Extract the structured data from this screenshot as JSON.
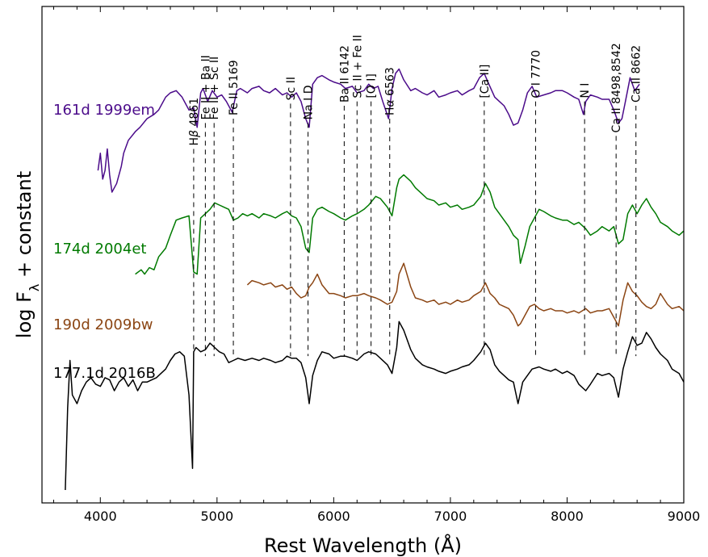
{
  "chart_data": {
    "type": "line",
    "xlabel": "Rest Wavelength (Å)",
    "ylabel": "log F_λ + constant",
    "ylabel_main": "log F",
    "ylabel_sub": "λ",
    "ylabel_rest": " + constant",
    "xlim": [
      3500,
      9000
    ],
    "xticks": [
      4000,
      5000,
      6000,
      7000,
      8000,
      9000
    ],
    "grid": false,
    "series": [
      {
        "name": "161d 1999em",
        "color": "#4b0b8a",
        "x": [
          3980,
          4000,
          4020,
          4040,
          4060,
          4080,
          4100,
          4140,
          4180,
          4200,
          4240,
          4300,
          4340,
          4400,
          4460,
          4500,
          4560,
          4600,
          4650,
          4700,
          4760,
          4800,
          4830,
          4860,
          4880,
          4920,
          4960,
          5000,
          5040,
          5080,
          5130,
          5170,
          5200,
          5260,
          5300,
          5360,
          5400,
          5450,
          5500,
          5560,
          5600,
          5640,
          5680,
          5720,
          5760,
          5790,
          5820,
          5860,
          5900,
          5960,
          6000,
          6060,
          6100,
          6160,
          6200,
          6260,
          6300,
          6340,
          6380,
          6420,
          6470,
          6500,
          6530,
          6560,
          6600,
          6660,
          6700,
          6760,
          6800,
          6860,
          6900,
          6960,
          7000,
          7060,
          7100,
          7160,
          7200,
          7250,
          7290,
          7330,
          7380,
          7420,
          7460,
          7500,
          7540,
          7580,
          7620,
          7660,
          7700,
          7740,
          7800,
          7860,
          7900,
          7960,
          8000,
          8060,
          8100,
          8140,
          8160,
          8200,
          8260,
          8300,
          8360,
          8400,
          8440,
          8470,
          8500,
          8540,
          8580,
          8620
        ],
        "y": [
          7.7,
          8.1,
          7.5,
          7.7,
          8.2,
          7.6,
          7.2,
          7.4,
          7.8,
          8.1,
          8.4,
          8.6,
          8.7,
          8.9,
          9.0,
          9.1,
          9.4,
          9.5,
          9.55,
          9.4,
          9.1,
          9.15,
          8.7,
          9.5,
          9.6,
          9.3,
          9.55,
          9.4,
          9.45,
          9.3,
          9.05,
          9.55,
          9.6,
          9.5,
          9.6,
          9.65,
          9.55,
          9.5,
          9.6,
          9.45,
          9.5,
          9.4,
          9.5,
          9.3,
          8.9,
          8.7,
          9.7,
          9.85,
          9.9,
          9.8,
          9.75,
          9.7,
          9.6,
          9.65,
          9.5,
          9.55,
          9.7,
          9.6,
          9.65,
          9.3,
          8.9,
          9.6,
          9.95,
          10.05,
          9.8,
          9.55,
          9.6,
          9.5,
          9.45,
          9.55,
          9.4,
          9.45,
          9.5,
          9.55,
          9.45,
          9.55,
          9.6,
          9.85,
          9.95,
          9.7,
          9.4,
          9.3,
          9.2,
          9.0,
          8.75,
          8.8,
          9.1,
          9.5,
          9.65,
          9.4,
          9.45,
          9.5,
          9.55,
          9.55,
          9.5,
          9.4,
          9.35,
          9.0,
          9.3,
          9.45,
          9.4,
          9.35,
          9.35,
          9.1,
          8.8,
          8.9,
          9.3,
          9.85,
          9.55,
          9.7
        ]
      },
      {
        "name": "174d 2004et",
        "color": "#007a00",
        "x": [
          4300,
          4350,
          4380,
          4420,
          4460,
          4500,
          4560,
          4600,
          4650,
          4700,
          4760,
          4800,
          4830,
          4860,
          4900,
          4940,
          4980,
          5020,
          5060,
          5100,
          5140,
          5180,
          5220,
          5260,
          5300,
          5360,
          5400,
          5460,
          5500,
          5560,
          5600,
          5640,
          5680,
          5720,
          5760,
          5790,
          5820,
          5860,
          5900,
          5960,
          6000,
          6060,
          6100,
          6160,
          6200,
          6260,
          6300,
          6360,
          6400,
          6460,
          6500,
          6540,
          6560,
          6600,
          6660,
          6700,
          6760,
          6800,
          6860,
          6900,
          6960,
          7000,
          7060,
          7100,
          7160,
          7200,
          7260,
          7300,
          7340,
          7380,
          7420,
          7460,
          7500,
          7540,
          7580,
          7600,
          7640,
          7680,
          7720,
          7760,
          7800,
          7860,
          7900,
          7960,
          8000,
          8060,
          8100,
          8160,
          8200,
          8260,
          8300,
          8360,
          8400,
          8440,
          8480,
          8520,
          8560,
          8600,
          8640,
          8680,
          8720,
          8760,
          8800,
          8860,
          8900,
          8960,
          9000
        ],
        "y": [
          5.3,
          5.4,
          5.3,
          5.45,
          5.4,
          5.7,
          5.9,
          6.2,
          6.55,
          6.6,
          6.65,
          5.35,
          5.3,
          6.6,
          6.7,
          6.8,
          6.95,
          6.9,
          6.85,
          6.8,
          6.55,
          6.6,
          6.7,
          6.65,
          6.7,
          6.6,
          6.7,
          6.65,
          6.6,
          6.7,
          6.75,
          6.65,
          6.6,
          6.4,
          5.9,
          5.8,
          6.6,
          6.8,
          6.85,
          6.75,
          6.7,
          6.6,
          6.55,
          6.65,
          6.7,
          6.8,
          6.9,
          7.1,
          7.05,
          6.85,
          6.65,
          7.3,
          7.5,
          7.6,
          7.45,
          7.3,
          7.15,
          7.05,
          7.0,
          6.9,
          6.95,
          6.85,
          6.9,
          6.8,
          6.85,
          6.9,
          7.1,
          7.4,
          7.2,
          6.85,
          6.7,
          6.55,
          6.4,
          6.2,
          6.1,
          5.55,
          5.95,
          6.4,
          6.6,
          6.8,
          6.75,
          6.65,
          6.6,
          6.55,
          6.55,
          6.45,
          6.5,
          6.35,
          6.2,
          6.3,
          6.4,
          6.3,
          6.4,
          6.0,
          6.1,
          6.7,
          6.9,
          6.7,
          6.9,
          7.05,
          6.85,
          6.7,
          6.5,
          6.4,
          6.3,
          6.2,
          6.3
        ]
      },
      {
        "name": "190d 2009bw",
        "color": "#8b4513",
        "x": [
          5260,
          5300,
          5360,
          5400,
          5460,
          5500,
          5560,
          5600,
          5640,
          5680,
          5720,
          5760,
          5790,
          5820,
          5860,
          5900,
          5960,
          6000,
          6060,
          6100,
          6160,
          6200,
          6260,
          6300,
          6360,
          6400,
          6460,
          6500,
          6540,
          6560,
          6600,
          6660,
          6700,
          6760,
          6800,
          6860,
          6900,
          6960,
          7000,
          7060,
          7100,
          7160,
          7200,
          7260,
          7300,
          7340,
          7380,
          7420,
          7460,
          7500,
          7540,
          7580,
          7600,
          7640,
          7680,
          7720,
          7760,
          7800,
          7860,
          7900,
          7960,
          8000,
          8060,
          8100,
          8160,
          8200,
          8260,
          8300,
          8360,
          8400,
          8440,
          8480,
          8520,
          8560,
          8600,
          8640,
          8680,
          8720,
          8760,
          8800,
          8860,
          8900,
          8960,
          9000
        ],
        "y": [
          5.05,
          5.15,
          5.1,
          5.05,
          5.1,
          5.0,
          5.05,
          4.95,
          5.0,
          4.85,
          4.75,
          4.8,
          5.0,
          5.1,
          5.3,
          5.05,
          4.85,
          4.85,
          4.8,
          4.75,
          4.8,
          4.8,
          4.85,
          4.8,
          4.75,
          4.7,
          4.6,
          4.65,
          4.9,
          5.3,
          5.55,
          5.0,
          4.75,
          4.7,
          4.65,
          4.7,
          4.6,
          4.65,
          4.6,
          4.7,
          4.65,
          4.7,
          4.8,
          4.9,
          5.1,
          4.85,
          4.75,
          4.6,
          4.55,
          4.5,
          4.35,
          4.1,
          4.15,
          4.35,
          4.55,
          4.6,
          4.5,
          4.45,
          4.5,
          4.45,
          4.45,
          4.4,
          4.45,
          4.4,
          4.5,
          4.4,
          4.45,
          4.45,
          4.5,
          4.3,
          4.1,
          4.7,
          5.1,
          4.9,
          4.8,
          4.65,
          4.55,
          4.5,
          4.6,
          4.85,
          4.6,
          4.5,
          4.55,
          4.45
        ]
      },
      {
        "name": "177.1d 2016B",
        "color": "#000000",
        "x": [
          3700,
          3720,
          3740,
          3760,
          3800,
          3840,
          3880,
          3920,
          3960,
          4000,
          4040,
          4080,
          4120,
          4160,
          4200,
          4240,
          4280,
          4320,
          4360,
          4400,
          4440,
          4480,
          4520,
          4560,
          4600,
          4640,
          4680,
          4720,
          4760,
          4790,
          4800,
          4820,
          4860,
          4900,
          4940,
          4980,
          5020,
          5060,
          5100,
          5140,
          5180,
          5240,
          5300,
          5360,
          5400,
          5460,
          5500,
          5560,
          5600,
          5640,
          5680,
          5720,
          5760,
          5790,
          5820,
          5860,
          5900,
          5960,
          6000,
          6060,
          6100,
          6160,
          6200,
          6260,
          6300,
          6360,
          6400,
          6460,
          6500,
          6540,
          6560,
          6600,
          6660,
          6700,
          6760,
          6800,
          6860,
          6900,
          6960,
          7000,
          7060,
          7100,
          7160,
          7200,
          7260,
          7300,
          7340,
          7380,
          7420,
          7460,
          7500,
          7540,
          7580,
          7620,
          7660,
          7700,
          7760,
          7800,
          7860,
          7900,
          7960,
          8000,
          8060,
          8100,
          8160,
          8200,
          8260,
          8300,
          8360,
          8400,
          8440,
          8480,
          8520,
          8560,
          8600,
          8640,
          8680,
          8720,
          8760,
          8800,
          8860,
          8900,
          8960,
          9000
        ],
        "y": [
          0.3,
          2.2,
          3.3,
          2.5,
          2.3,
          2.6,
          2.8,
          2.9,
          2.75,
          2.7,
          2.9,
          2.85,
          2.6,
          2.8,
          2.9,
          2.7,
          2.85,
          2.6,
          2.8,
          2.8,
          2.85,
          2.9,
          3.0,
          3.1,
          3.3,
          3.45,
          3.5,
          3.4,
          2.5,
          0.8,
          3.5,
          3.6,
          3.5,
          3.55,
          3.7,
          3.6,
          3.5,
          3.45,
          3.25,
          3.3,
          3.35,
          3.3,
          3.35,
          3.3,
          3.35,
          3.3,
          3.25,
          3.3,
          3.4,
          3.35,
          3.35,
          3.25,
          2.9,
          2.3,
          2.95,
          3.3,
          3.5,
          3.45,
          3.35,
          3.4,
          3.4,
          3.35,
          3.3,
          3.45,
          3.5,
          3.45,
          3.35,
          3.2,
          3.0,
          3.6,
          4.2,
          4.0,
          3.55,
          3.35,
          3.2,
          3.15,
          3.1,
          3.05,
          3.0,
          3.05,
          3.1,
          3.15,
          3.2,
          3.3,
          3.5,
          3.7,
          3.55,
          3.2,
          3.05,
          2.95,
          2.85,
          2.8,
          2.3,
          2.8,
          2.95,
          3.1,
          3.15,
          3.1,
          3.05,
          3.1,
          3.0,
          3.05,
          2.95,
          2.75,
          2.6,
          2.75,
          3.0,
          2.95,
          3.0,
          2.9,
          2.45,
          3.1,
          3.5,
          3.85,
          3.65,
          3.7,
          3.95,
          3.8,
          3.6,
          3.45,
          3.3,
          3.1,
          3.0,
          2.8
        ]
      }
    ],
    "lines": [
      {
        "x": 4800,
        "label": "Hβ 4861",
        "label_main": "H",
        "label_greek": "β",
        "label_rest": " 4861",
        "ytop": 8.2
      },
      {
        "x": 4900,
        "label": "Fe II + Ba II",
        "ytop": 8.8
      },
      {
        "x": 4975,
        "label": "Fe II + Sc II",
        "ytop": 8.8
      },
      {
        "x": 5140,
        "label": "Fe II 5169",
        "ytop": 8.9
      },
      {
        "x": 5630,
        "label": "Sc II",
        "ytop": 9.25
      },
      {
        "x": 5780,
        "label": "Na I D",
        "ytop": 8.8
      },
      {
        "x": 6090,
        "label": "Ba II 6142",
        "ytop": 9.2
      },
      {
        "x": 6200,
        "label": "Sc II + Fe II",
        "ytop": 9.3
      },
      {
        "x": 6320,
        "label": "[O I]",
        "ytop": 9.3
      },
      {
        "x": 6480,
        "label": "Hα 6563",
        "label_main": "H",
        "label_greek": "α",
        "label_rest": " 6563",
        "ytop": 8.9
      },
      {
        "x": 7290,
        "label": "[Ca II]",
        "ytop": 9.3
      },
      {
        "x": 7730,
        "label": "O I 7770",
        "ytop": 9.3
      },
      {
        "x": 8150,
        "label": "N I",
        "ytop": 9.3
      },
      {
        "x": 8420,
        "label": "Ca II 8498,8542",
        "ytop": 8.5
      },
      {
        "x": 8590,
        "label": "Ca II 8662",
        "ytop": 9.2
      }
    ]
  }
}
